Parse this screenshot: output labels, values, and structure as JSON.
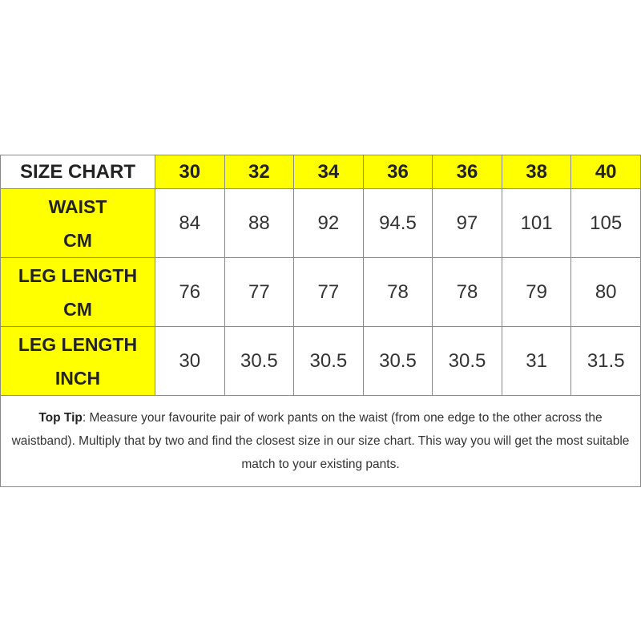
{
  "table": {
    "corner_label": "SIZE CHART",
    "sizes": [
      "30",
      "32",
      "34",
      "36",
      "36",
      "38",
      "40"
    ],
    "rows": [
      {
        "label_line1": "WAIST",
        "label_line2": "CM",
        "values": [
          "84",
          "88",
          "92",
          "94.5",
          "97",
          "101",
          "105"
        ]
      },
      {
        "label_line1": "LEG LENGTH",
        "label_line2": "CM",
        "values": [
          "76",
          "77",
          "77",
          "78",
          "78",
          "79",
          "80"
        ]
      },
      {
        "label_line1": "LEG LENGTH",
        "label_line2": "INCH",
        "values": [
          "30",
          "30.5",
          "30.5",
          "30.5",
          "30.5",
          "31",
          "31.5"
        ]
      }
    ],
    "tip_label": "Top Tip",
    "tip_text": ": Measure your favourite pair of work pants on the waist (from one edge to the other across the waistband). Multiply that by two and find the closest size in our size chart. This way you will get the most suitable match to your existing pants."
  },
  "colors": {
    "highlight": "#ffff00",
    "border": "#8a8a8a"
  }
}
